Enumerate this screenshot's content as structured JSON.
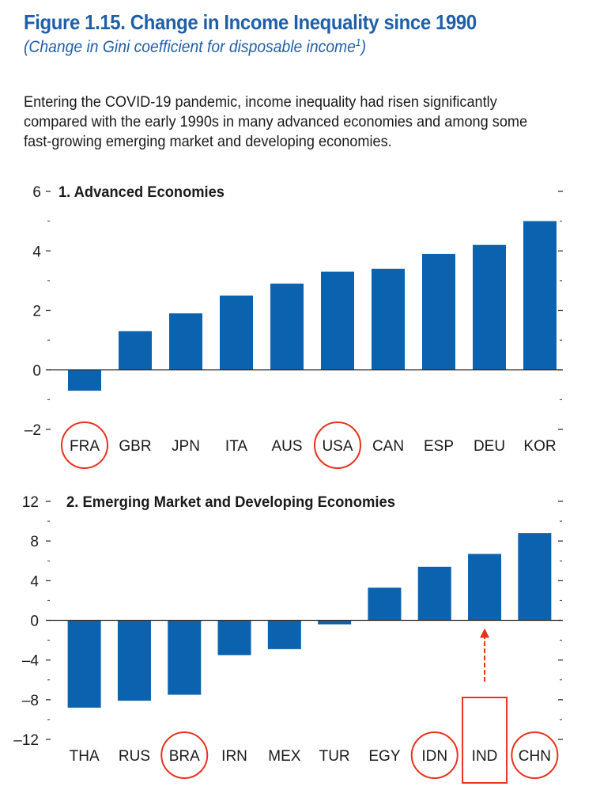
{
  "figure": {
    "title": "Figure 1.15.  Change in Income Inequality since 1990",
    "subtitle": "(Change in Gini coefficient for disposable income",
    "subtitle_sup": "1",
    "subtitle_close": ")",
    "description": "Entering the COVID-19 pandemic, income inequality had risen significantly compared with the early 1990s in many advanced economies and among some fast-growing emerging market and developing economies."
  },
  "colors": {
    "bar": "#0b62ae",
    "title": "#1f5fa8",
    "annotation": "#e8321e",
    "axis": "#333333"
  },
  "chart_data": [
    {
      "type": "bar",
      "title": "1. Advanced Economies",
      "categories": [
        "FRA",
        "GBR",
        "JPN",
        "ITA",
        "AUS",
        "USA",
        "CAN",
        "ESP",
        "DEU",
        "KOR"
      ],
      "values": [
        -0.7,
        1.3,
        1.9,
        2.5,
        2.9,
        3.3,
        3.4,
        3.9,
        4.2,
        5.0
      ],
      "ylim": [
        -2,
        6
      ],
      "yticks": [
        -2,
        0,
        2,
        4,
        6
      ],
      "ytick_labels": [
        "–2",
        "0",
        "2",
        "4",
        "6"
      ],
      "xlabel": "",
      "ylabel": "",
      "grid": false,
      "annotations": {
        "circled": [
          "FRA",
          "USA"
        ]
      }
    },
    {
      "type": "bar",
      "title": "2. Emerging Market and Developing Economies",
      "categories": [
        "THA",
        "RUS",
        "BRA",
        "IRN",
        "MEX",
        "TUR",
        "EGY",
        "IDN",
        "IND",
        "CHN"
      ],
      "values": [
        -8.8,
        -8.1,
        -7.5,
        -3.5,
        -2.9,
        -0.4,
        3.3,
        5.4,
        6.7,
        8.8
      ],
      "ylim": [
        -12,
        12
      ],
      "yticks": [
        -12,
        -8,
        -4,
        0,
        4,
        8,
        12
      ],
      "ytick_labels": [
        "–12",
        "–8",
        "–4",
        "0",
        "4",
        "8",
        "12"
      ],
      "xlabel": "",
      "ylabel": "",
      "grid": false,
      "annotations": {
        "circled": [
          "BRA",
          "IDN",
          "CHN"
        ],
        "boxed_with_arrow": [
          "IND"
        ]
      }
    }
  ]
}
